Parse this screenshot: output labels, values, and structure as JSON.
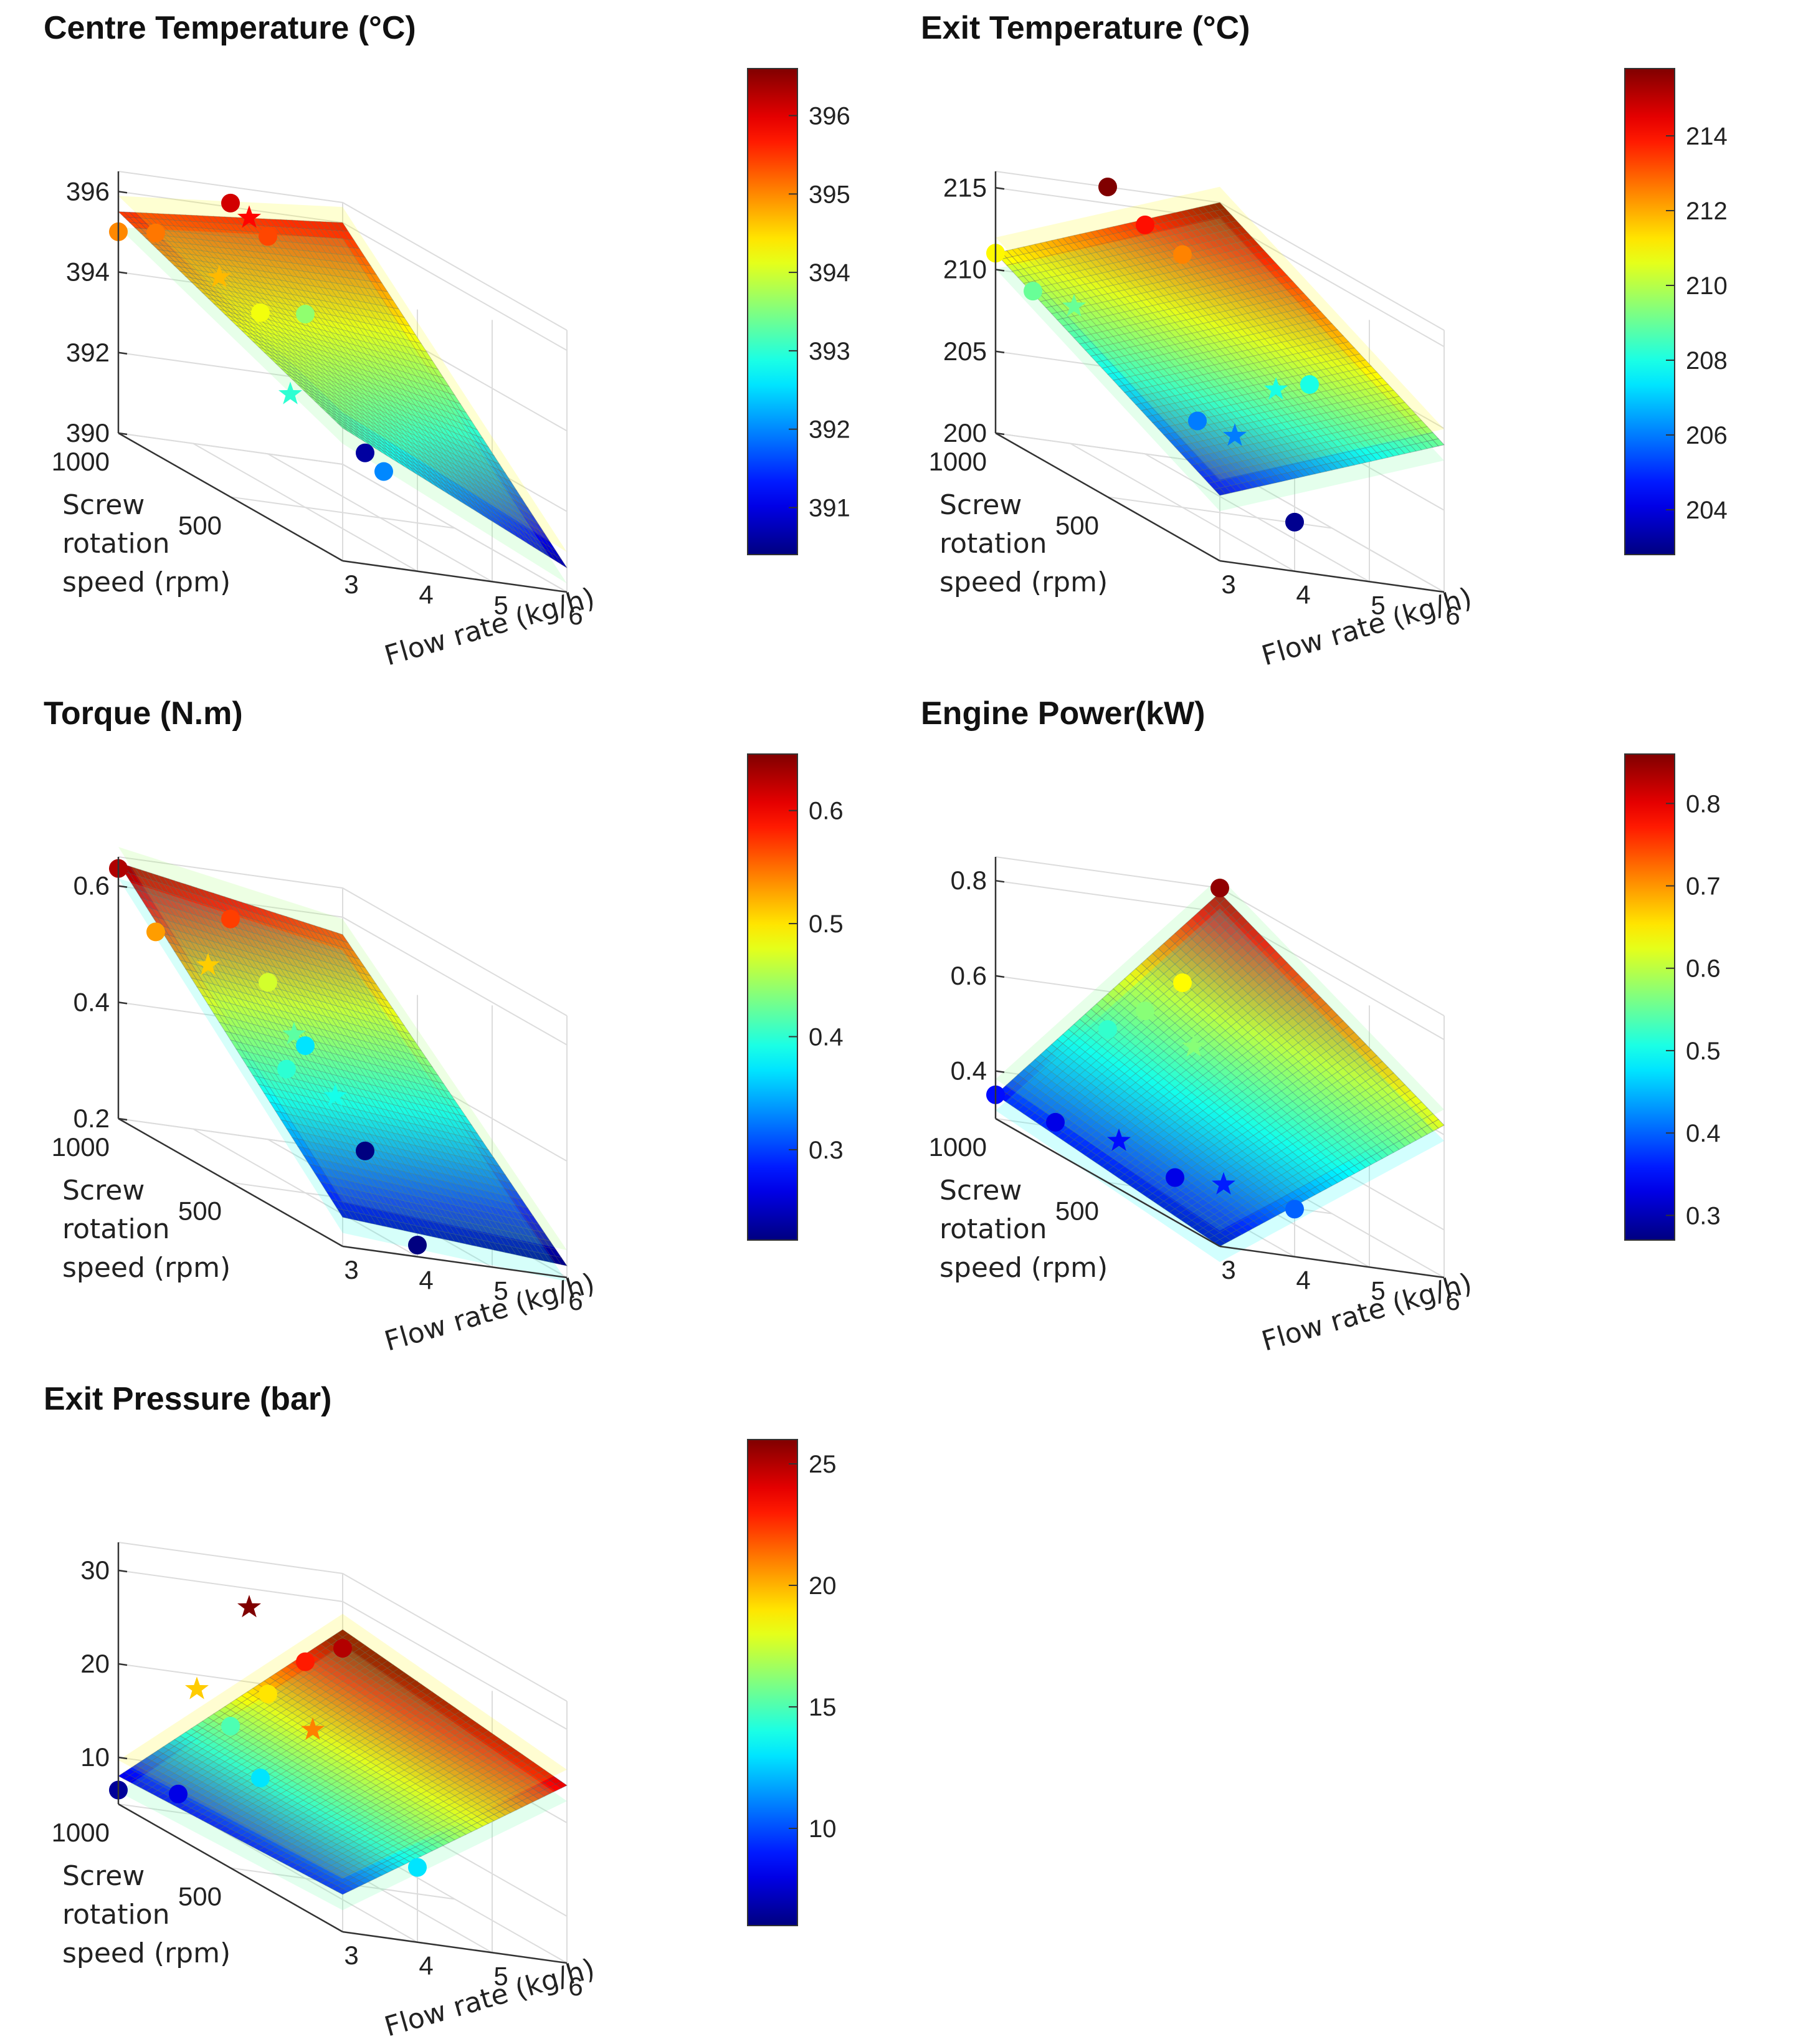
{
  "chart_data": [
    {
      "type": "surface",
      "title": "Centre Temperature (°C)",
      "xlabel": "Flow rate (kg/h)",
      "ylabel_lines": [
        "Screw",
        "rotation",
        "speed (rpm)"
      ],
      "x_ticks": [
        "3",
        "4",
        "5",
        "6"
      ],
      "y_ticks": [
        "1000",
        "500"
      ],
      "z_ticks": [
        "390",
        "392",
        "394",
        "396"
      ],
      "zlim": [
        390,
        396.5
      ],
      "surface_corners": {
        "x3_y1000": 395.5,
        "x3_y0": 393.3,
        "x6_y1000": 396.0,
        "x6_y0": 390.6
      },
      "colorbar_ticks": [
        "391",
        "392",
        "393",
        "394",
        "395",
        "396"
      ],
      "colorbar_range": [
        390.4,
        396.6
      ],
      "points": [
        {
          "x": 3,
          "y": 1000,
          "z": 395.0,
          "marker": "circle"
        },
        {
          "x": 3.5,
          "y": 1000,
          "z": 395.1,
          "marker": "circle"
        },
        {
          "x": 3.75,
          "y": 800,
          "z": 394.7,
          "marker": "star"
        },
        {
          "x": 4.0,
          "y": 700,
          "z": 394.2,
          "marker": "circle"
        },
        {
          "x": 3.5,
          "y": 400,
          "z": 393.0,
          "marker": "star"
        },
        {
          "x": 4.0,
          "y": 150,
          "z": 392.0,
          "marker": "circle"
        },
        {
          "x": 4.5,
          "y": 1000,
          "z": 396.1,
          "marker": "circle"
        },
        {
          "x": 4.75,
          "y": 1000,
          "z": 395.8,
          "marker": "star"
        },
        {
          "x": 5.0,
          "y": 1000,
          "z": 395.4,
          "marker": "circle"
        },
        {
          "x": 5.5,
          "y": 1000,
          "z": 393.6,
          "marker": "circle"
        },
        {
          "x": 6.0,
          "y": 900,
          "z": 390.6,
          "marker": "circle"
        }
      ]
    },
    {
      "type": "surface",
      "title": "Exit Temperature (°C)",
      "xlabel": "Flow rate (kg/h)",
      "ylabel_lines": [
        "Screw",
        "rotation",
        "speed (rpm)"
      ],
      "x_ticks": [
        "3",
        "4",
        "5",
        "6"
      ],
      "y_ticks": [
        "1000",
        "500"
      ],
      "z_ticks": [
        "200",
        "205",
        "210",
        "215"
      ],
      "zlim": [
        200,
        216
      ],
      "surface_corners": {
        "x3_y1000": 211.0,
        "x3_y0": 204.0,
        "x6_y1000": 216.0,
        "x6_y0": 209.0
      },
      "colorbar_ticks": [
        "204",
        "206",
        "208",
        "210",
        "212",
        "214"
      ],
      "colorbar_range": [
        202.8,
        215.8
      ],
      "points": [
        {
          "x": 3,
          "y": 1000,
          "z": 211.0,
          "marker": "circle"
        },
        {
          "x": 3.5,
          "y": 1000,
          "z": 209.0,
          "marker": "circle"
        },
        {
          "x": 3.75,
          "y": 900,
          "z": 209.0,
          "marker": "star"
        },
        {
          "x": 3.9,
          "y": 400,
          "z": 206.0,
          "marker": "circle"
        },
        {
          "x": 4.1,
          "y": 300,
          "z": 206.0,
          "marker": "star"
        },
        {
          "x": 4.0,
          "y": 0,
          "z": 203.0,
          "marker": "circle"
        },
        {
          "x": 4.5,
          "y": 1000,
          "z": 216.0,
          "marker": "circle"
        },
        {
          "x": 5.0,
          "y": 1000,
          "z": 214.0,
          "marker": "circle"
        },
        {
          "x": 5.5,
          "y": 1000,
          "z": 212.5,
          "marker": "circle"
        },
        {
          "x": 5.25,
          "y": 500,
          "z": 208.0,
          "marker": "star"
        },
        {
          "x": 6.0,
          "y": 600,
          "z": 208.0,
          "marker": "circle"
        }
      ]
    },
    {
      "type": "surface",
      "title": "Torque (N.m)",
      "xlabel": "Flow rate (kg/h)",
      "ylabel_lines": [
        "Screw",
        "rotation",
        "speed (rpm)"
      ],
      "x_ticks": [
        "3",
        "4",
        "5",
        "6"
      ],
      "y_ticks": [
        "1000",
        "500"
      ],
      "z_ticks": [
        "0.2",
        "0.4",
        "0.6"
      ],
      "zlim": [
        0.2,
        0.65
      ],
      "surface_corners": {
        "x3_y1000": 0.64,
        "x3_y0": 0.25,
        "x6_y1000": 0.57,
        "x6_y0": 0.22
      },
      "colorbar_ticks": [
        "0.3",
        "0.4",
        "0.5",
        "0.6"
      ],
      "colorbar_range": [
        0.22,
        0.65
      ],
      "points": [
        {
          "x": 3,
          "y": 1000,
          "z": 0.63,
          "marker": "circle"
        },
        {
          "x": 3.5,
          "y": 1000,
          "z": 0.53,
          "marker": "circle"
        },
        {
          "x": 3.75,
          "y": 850,
          "z": 0.51,
          "marker": "star"
        },
        {
          "x": 3.9,
          "y": 550,
          "z": 0.4,
          "marker": "circle"
        },
        {
          "x": 4.1,
          "y": 400,
          "z": 0.39,
          "marker": "star"
        },
        {
          "x": 4.0,
          "y": 0,
          "z": 0.22,
          "marker": "circle"
        },
        {
          "x": 4.5,
          "y": 1000,
          "z": 0.57,
          "marker": "circle"
        },
        {
          "x": 5.0,
          "y": 1000,
          "z": 0.47,
          "marker": "circle"
        },
        {
          "x": 4.75,
          "y": 800,
          "z": 0.42,
          "marker": "star"
        },
        {
          "x": 5.5,
          "y": 1000,
          "z": 0.37,
          "marker": "circle"
        },
        {
          "x": 6.0,
          "y": 900,
          "z": 0.22,
          "marker": "circle"
        }
      ]
    },
    {
      "type": "surface",
      "title": "Engine Power(kW)",
      "xlabel": "Flow rate (kg/h)",
      "ylabel_lines": [
        "Screw",
        "rotation",
        "speed (rpm)"
      ],
      "x_ticks": [
        "3",
        "4",
        "5",
        "6"
      ],
      "y_ticks": [
        "1000",
        "500"
      ],
      "z_ticks": [
        "0.4",
        "0.6",
        "0.8"
      ],
      "zlim": [
        0.3,
        0.85
      ],
      "surface_corners": {
        "x3_y1000": 0.35,
        "x3_y0": 0.3,
        "x6_y1000": 0.84,
        "x6_y0": 0.62
      },
      "colorbar_ticks": [
        "0.3",
        "0.4",
        "0.5",
        "0.6",
        "0.7",
        "0.8"
      ],
      "colorbar_range": [
        0.27,
        0.86
      ],
      "points": [
        {
          "x": 3,
          "y": 1000,
          "z": 0.35,
          "marker": "circle"
        },
        {
          "x": 3.5,
          "y": 900,
          "z": 0.33,
          "marker": "circle"
        },
        {
          "x": 3.75,
          "y": 700,
          "z": 0.35,
          "marker": "star"
        },
        {
          "x": 3.9,
          "y": 500,
          "z": 0.33,
          "marker": "circle"
        },
        {
          "x": 4.1,
          "y": 350,
          "z": 0.36,
          "marker": "star"
        },
        {
          "x": 4.0,
          "y": 0,
          "z": 0.4,
          "marker": "circle"
        },
        {
          "x": 4.5,
          "y": 1000,
          "z": 0.52,
          "marker": "circle"
        },
        {
          "x": 5.0,
          "y": 1000,
          "z": 0.57,
          "marker": "circle"
        },
        {
          "x": 4.75,
          "y": 700,
          "z": 0.57,
          "marker": "star"
        },
        {
          "x": 5.5,
          "y": 1000,
          "z": 0.64,
          "marker": "circle"
        },
        {
          "x": 6.0,
          "y": 1000,
          "z": 0.85,
          "marker": "circle"
        }
      ]
    },
    {
      "type": "surface",
      "title": "Exit Pressure (bar)",
      "xlabel": "Flow rate (kg/h)",
      "ylabel_lines": [
        "Screw",
        "rotation",
        "speed (rpm)"
      ],
      "x_ticks": [
        "3",
        "4",
        "5",
        "6"
      ],
      "y_ticks": [
        "1000",
        "500"
      ],
      "z_ticks": [
        "10",
        "20",
        "30"
      ],
      "zlim": [
        5,
        33
      ],
      "surface_corners": {
        "x3_y1000": 8.0,
        "x3_y0": 9.0,
        "x6_y1000": 27.0,
        "x6_y0": 24.0
      },
      "colorbar_ticks": [
        "10",
        "15",
        "20",
        "25"
      ],
      "colorbar_range": [
        6.0,
        26.0
      ],
      "points": [
        {
          "x": 3,
          "y": 1000,
          "z": 6.5,
          "marker": "circle"
        },
        {
          "x": 3.5,
          "y": 900,
          "z": 8.0,
          "marker": "circle"
        },
        {
          "x": 3.75,
          "y": 900,
          "z": 19.5,
          "marker": "star"
        },
        {
          "x": 4.0,
          "y": 700,
          "z": 13.0,
          "marker": "circle"
        },
        {
          "x": 4.1,
          "y": 500,
          "z": 21.0,
          "marker": "star"
        },
        {
          "x": 4.0,
          "y": 0,
          "z": 13.0,
          "marker": "circle"
        },
        {
          "x": 4.5,
          "y": 1000,
          "z": 15.0,
          "marker": "circle"
        },
        {
          "x": 4.75,
          "y": 1000,
          "z": 28.0,
          "marker": "star"
        },
        {
          "x": 5.0,
          "y": 1000,
          "z": 19.0,
          "marker": "circle"
        },
        {
          "x": 5.5,
          "y": 1000,
          "z": 23.0,
          "marker": "circle"
        },
        {
          "x": 6.0,
          "y": 1000,
          "z": 25.0,
          "marker": "circle"
        }
      ]
    }
  ]
}
